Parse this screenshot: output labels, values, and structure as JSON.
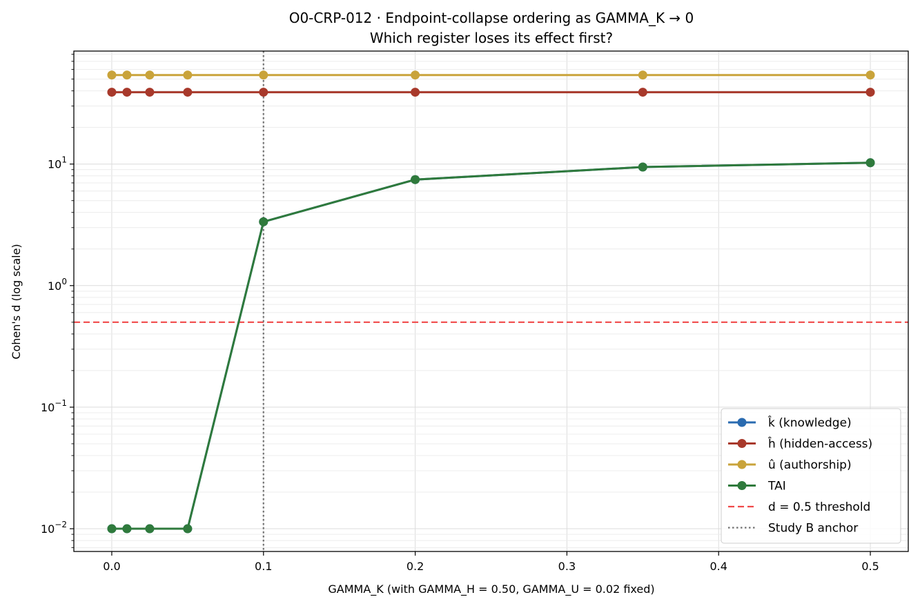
{
  "chart_data": {
    "type": "line",
    "title": "O0-CRP-012 · Endpoint-collapse ordering as GAMMA_K → 0",
    "subtitle": "Which register loses its effect first?",
    "xlabel": "GAMMA_K (with GAMMA_H = 0.50, GAMMA_U = 0.02 fixed)",
    "ylabel": "Cohen's d (log scale)",
    "yscale": "log",
    "xlim": [
      -0.025,
      0.525
    ],
    "ylim": [
      0.0065,
      85
    ],
    "grid": true,
    "x_ticks": [
      0.0,
      0.1,
      0.2,
      0.3,
      0.4,
      0.5
    ],
    "x_tick_labels": [
      "0.0",
      "0.1",
      "0.2",
      "0.3",
      "0.4",
      "0.5"
    ],
    "y_ticks": [
      0.01,
      0.1,
      1,
      10
    ],
    "y_tick_labels": [
      {
        "base": "10",
        "exp": "−2"
      },
      {
        "base": "10",
        "exp": "−1"
      },
      {
        "base": "10",
        "exp": "0"
      },
      {
        "base": "10",
        "exp": "1"
      }
    ],
    "x": [
      0.0,
      0.01,
      0.025,
      0.05,
      0.1,
      0.2,
      0.35,
      0.5
    ],
    "series": [
      {
        "name": "k̂ (knowledge)",
        "color": "#2a6bb0",
        "values": [
          0.01,
          0.01,
          0.01,
          0.01,
          3.35,
          7.45,
          9.45,
          10.25
        ]
      },
      {
        "name": "ĥ (hidden-access)",
        "color": "#a8392b",
        "values": [
          39.0,
          39.0,
          39.0,
          39.0,
          39.0,
          39.0,
          39.0,
          39.0
        ]
      },
      {
        "name": "û (authorship)",
        "color": "#c9a33a",
        "values": [
          54.0,
          54.0,
          54.0,
          54.0,
          54.0,
          54.0,
          54.0,
          54.0
        ]
      },
      {
        "name": "TAI",
        "color": "#2f7a3c",
        "values": [
          0.01,
          0.01,
          0.01,
          0.01,
          3.35,
          7.45,
          9.45,
          10.25
        ]
      }
    ],
    "reference_lines": [
      {
        "name": "d = 0.5 threshold",
        "orientation": "horizontal",
        "value": 0.5,
        "color": "#f04848",
        "style": "dashed"
      },
      {
        "name": "Study B anchor",
        "orientation": "vertical",
        "value": 0.1,
        "color": "#707070",
        "style": "dotted"
      }
    ],
    "legend_position": "bottom-right"
  }
}
